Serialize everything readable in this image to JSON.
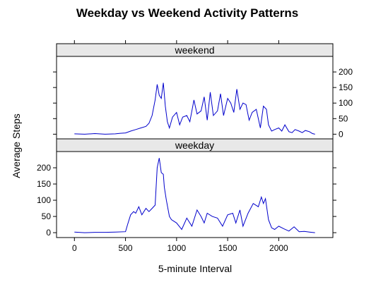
{
  "chart_data": {
    "type": "line",
    "title": "Weekday vs Weekend Activity Patterns",
    "xlabel": "5-minute Interval",
    "ylabel": "Average Steps",
    "xlim": [
      -175,
      2530
    ],
    "ylim": [
      -15,
      250
    ],
    "x_ticks": [
      0,
      500,
      1000,
      1500,
      2000
    ],
    "x_tick_labels": [
      "0",
      "500",
      "1000",
      "1500",
      "2000"
    ],
    "y_ticks": [
      0,
      50,
      100,
      150,
      200
    ],
    "y_tick_labels": [
      "0",
      "50",
      "100",
      "150",
      "200"
    ],
    "colors": {
      "line": "#0000cc",
      "strip": "#e8e8e8",
      "frame": "#000000"
    },
    "panels": [
      {
        "name": "weekend",
        "tick_labels_side": "right",
        "x": [
          0,
          100,
          200,
          300,
          400,
          450,
          500,
          550,
          600,
          650,
          700,
          730,
          760,
          790,
          810,
          830,
          850,
          870,
          890,
          910,
          930,
          960,
          1000,
          1030,
          1060,
          1100,
          1130,
          1170,
          1200,
          1240,
          1270,
          1300,
          1330,
          1360,
          1400,
          1430,
          1460,
          1500,
          1530,
          1560,
          1590,
          1620,
          1650,
          1680,
          1710,
          1740,
          1780,
          1820,
          1850,
          1880,
          1900,
          1930,
          1960,
          2000,
          2030,
          2060,
          2100,
          2130,
          2160,
          2200,
          2230,
          2260,
          2300,
          2330,
          2355
        ],
        "y": [
          1,
          0,
          2,
          0,
          1,
          3,
          4,
          10,
          15,
          20,
          25,
          35,
          60,
          110,
          160,
          125,
          115,
          165,
          90,
          40,
          20,
          55,
          70,
          30,
          55,
          60,
          40,
          110,
          65,
          75,
          120,
          45,
          135,
          60,
          75,
          130,
          60,
          115,
          100,
          70,
          145,
          80,
          100,
          95,
          45,
          70,
          80,
          20,
          90,
          80,
          30,
          10,
          15,
          20,
          10,
          30,
          8,
          5,
          15,
          10,
          5,
          12,
          8,
          2,
          0
        ]
      },
      {
        "name": "weekday",
        "tick_labels_side": "left",
        "x": [
          0,
          100,
          200,
          300,
          400,
          500,
          520,
          550,
          580,
          600,
          630,
          660,
          700,
          730,
          760,
          790,
          810,
          830,
          850,
          870,
          880,
          900,
          930,
          950,
          1000,
          1050,
          1100,
          1150,
          1200,
          1240,
          1270,
          1300,
          1350,
          1400,
          1450,
          1500,
          1550,
          1580,
          1620,
          1650,
          1700,
          1750,
          1800,
          1830,
          1850,
          1870,
          1900,
          1930,
          1960,
          2000,
          2050,
          2100,
          2150,
          2200,
          2250,
          2300,
          2355
        ],
        "y": [
          2,
          0,
          1,
          1,
          2,
          3,
          25,
          55,
          65,
          60,
          80,
          55,
          75,
          65,
          75,
          85,
          200,
          230,
          185,
          180,
          140,
          100,
          50,
          40,
          30,
          10,
          45,
          20,
          70,
          50,
          30,
          60,
          50,
          45,
          20,
          55,
          60,
          30,
          70,
          20,
          60,
          90,
          80,
          110,
          90,
          105,
          40,
          15,
          10,
          20,
          12,
          5,
          18,
          3,
          4,
          2,
          0
        ]
      }
    ]
  }
}
